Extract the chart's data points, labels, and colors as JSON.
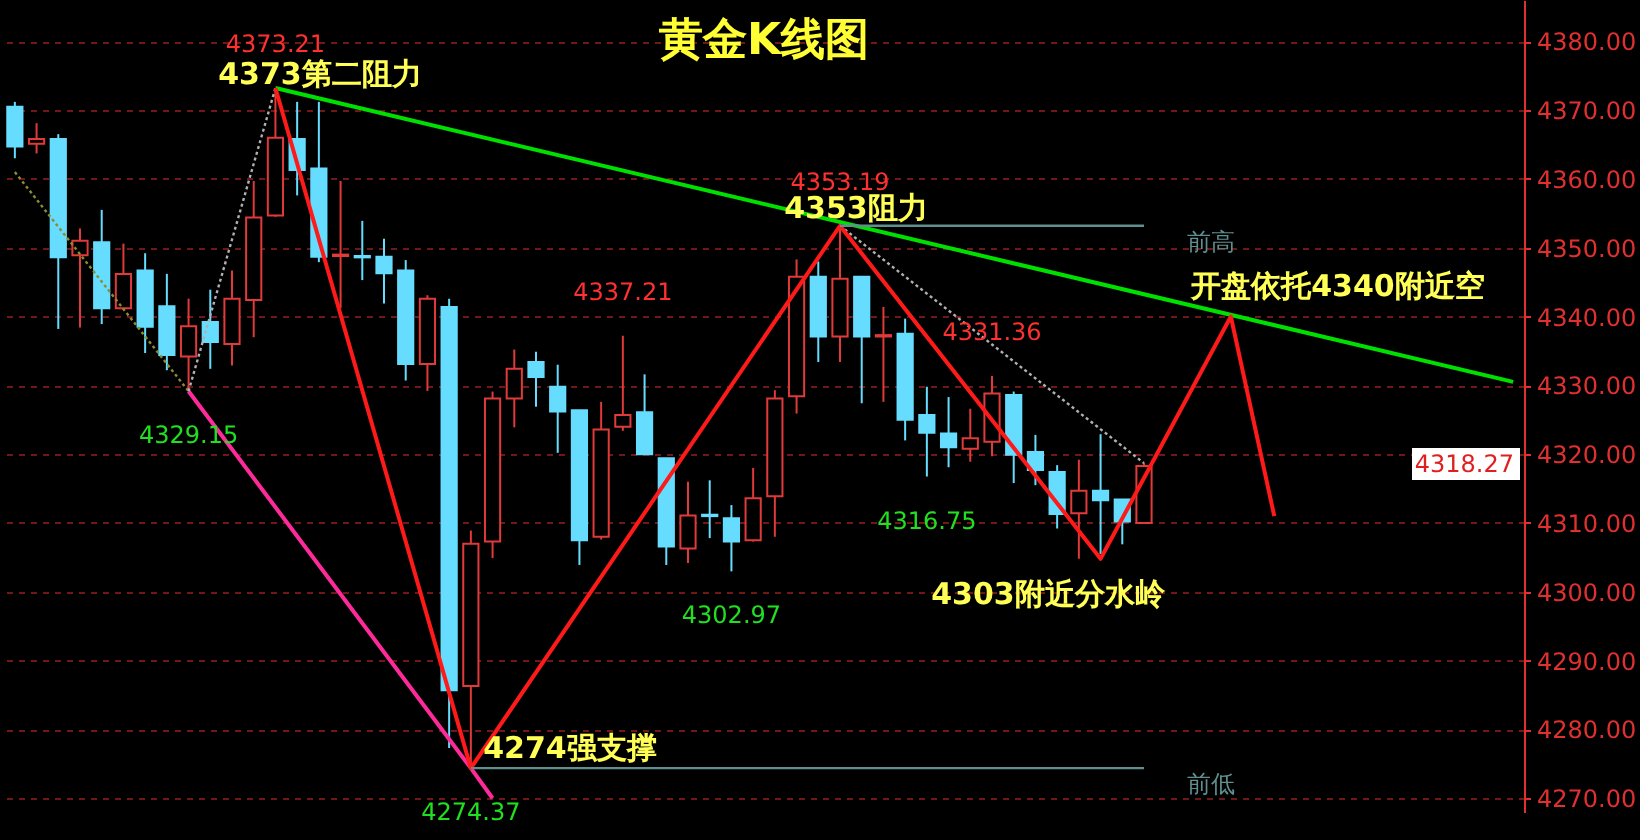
{
  "chart_data": {
    "type": "candlestick",
    "title": "黄金K线图",
    "categories": [
      null,
      null,
      null,
      null,
      null,
      null,
      null,
      null,
      null,
      null,
      null,
      null,
      null,
      null,
      null,
      null,
      null,
      null,
      null,
      null,
      null,
      null,
      null,
      null,
      null,
      null,
      null,
      null,
      null,
      null,
      null,
      null,
      null,
      null,
      null,
      null,
      null,
      null,
      null,
      null,
      null,
      null,
      null,
      null,
      null,
      null,
      null,
      null,
      null,
      null,
      null,
      null,
      null,
      null,
      null,
      null,
      null,
      null,
      null,
      null,
      null,
      null,
      null,
      null,
      null,
      null,
      null,
      null,
      null,
      null
    ],
    "ohlc": [
      [
        4370.5,
        4371.2,
        4363.0,
        4364.7
      ],
      [
        4365.1,
        4368.1,
        4363.7,
        4365.8
      ],
      [
        4365.8,
        4366.5,
        4338.2,
        4348.6
      ],
      [
        4348.9,
        4352.8,
        4338.4,
        4351.0
      ],
      [
        4350.8,
        4355.5,
        4338.9,
        4341.2
      ],
      [
        4341.2,
        4350.6,
        4341.0,
        4346.2
      ],
      [
        4346.7,
        4349.2,
        4334.7,
        4338.5
      ],
      [
        4341.5,
        4346.2,
        4332.2,
        4334.4
      ],
      [
        4334.2,
        4342.6,
        4329.15,
        4338.6
      ],
      [
        4339.2,
        4343.9,
        4332.4,
        4336.3
      ],
      [
        4336.0,
        4346.7,
        4332.9,
        4342.6
      ],
      [
        4342.4,
        4359.7,
        4337.0,
        4354.4
      ],
      [
        4354.7,
        4373.21,
        4354.5,
        4366.0
      ],
      [
        4365.8,
        4371.2,
        4357.6,
        4361.3
      ],
      [
        4361.5,
        4371.2,
        4347.9,
        4348.7
      ],
      [
        4348.8,
        4359.7,
        4341.2,
        4349.0
      ],
      [
        4348.8,
        4353.9,
        4345.3,
        4348.6
      ],
      [
        4348.7,
        4351.3,
        4341.9,
        4346.3
      ],
      [
        4346.7,
        4348.2,
        4330.7,
        4333.1
      ],
      [
        4333.1,
        4343.1,
        4329.2,
        4342.6
      ],
      [
        4341.4,
        4342.6,
        4277.3,
        4285.7
      ],
      [
        4286.3,
        4308.9,
        4274.37,
        4307.0
      ],
      [
        4307.3,
        4329.1,
        4304.9,
        4328.1
      ],
      [
        4328.1,
        4335.2,
        4323.9,
        4332.4
      ],
      [
        4333.4,
        4334.9,
        4326.9,
        4331.2
      ],
      [
        4329.8,
        4333.0,
        4320.2,
        4326.2
      ],
      [
        4326.4,
        4326.4,
        4303.9,
        4307.5
      ],
      [
        4308.0,
        4327.6,
        4307.6,
        4323.6
      ],
      [
        4324.0,
        4337.21,
        4323.4,
        4325.7
      ],
      [
        4326.1,
        4331.6,
        4320.0,
        4320.0
      ],
      [
        4319.4,
        4319.4,
        4303.9,
        4306.6
      ],
      [
        4306.3,
        4316.0,
        4304.2,
        4311.1
      ],
      [
        4311.2,
        4316.2,
        4307.8,
        4311.0
      ],
      [
        4310.7,
        4312.6,
        4302.97,
        4307.3
      ],
      [
        4307.5,
        4318.0,
        4307.3,
        4313.6
      ],
      [
        4313.9,
        4329.3,
        4308.0,
        4328.1
      ],
      [
        4328.4,
        4348.3,
        4325.9,
        4345.8
      ],
      [
        4345.8,
        4348.0,
        4333.4,
        4337.1
      ],
      [
        4337.1,
        4353.19,
        4333.4,
        4345.5
      ],
      [
        4345.8,
        4345.8,
        4327.4,
        4337.1
      ],
      [
        4337.1,
        4341.4,
        4327.6,
        4337.3
      ],
      [
        4337.5,
        4339.7,
        4322.0,
        4325.0
      ],
      [
        4325.7,
        4329.8,
        4316.75,
        4323.1
      ],
      [
        4323.0,
        4328.3,
        4318.1,
        4321.0
      ],
      [
        4320.8,
        4326.6,
        4318.9,
        4322.3
      ],
      [
        4321.8,
        4331.36,
        4319.7,
        4328.8
      ],
      [
        4328.6,
        4329.1,
        4315.8,
        4319.9
      ],
      [
        4320.3,
        4322.8,
        4315.5,
        4317.7
      ],
      [
        4317.4,
        4318.4,
        4309.2,
        4311.3
      ],
      [
        4311.4,
        4319.2,
        4304.8,
        4314.7
      ],
      [
        4314.7,
        4322.9,
        4305.5,
        4313.3
      ],
      [
        4313.4,
        4313.4,
        4306.9,
        4310.2
      ],
      [
        4310.0,
        4318.7,
        4310.0,
        4318.27
      ],
      null,
      null,
      null,
      null,
      null,
      null,
      null,
      null,
      null,
      null,
      null,
      null,
      null,
      null,
      null,
      null,
      null
    ],
    "series": [
      {
        "type": "line",
        "color": "#00e000",
        "values": [
          null,
          null,
          null,
          null,
          null,
          null,
          null,
          null,
          null,
          null,
          null,
          null,
          4373.21,
          null,
          null,
          null,
          null,
          null,
          null,
          null,
          null,
          null,
          null,
          null,
          null,
          null,
          null,
          null,
          null,
          null,
          null,
          null,
          null,
          null,
          null,
          null,
          null,
          null,
          null,
          null,
          null,
          null,
          null,
          null,
          null,
          null,
          null,
          null,
          null,
          null,
          null,
          null,
          null,
          null,
          null,
          null,
          null,
          null,
          null,
          null,
          null,
          null,
          null,
          null,
          null,
          null,
          null,
          null,
          null,
          4330.5
        ]
      },
      {
        "type": "line",
        "color": "#ff2a9a",
        "values": [
          null,
          null,
          null,
          null,
          null,
          null,
          null,
          null,
          4329.15,
          null,
          null,
          null,
          null,
          null,
          null,
          null,
          null,
          null,
          null,
          null,
          null,
          4274.37,
          4270.0,
          null,
          null,
          null,
          null,
          null,
          null,
          null,
          null,
          null,
          null,
          null,
          null,
          null,
          null,
          null,
          null,
          null,
          null,
          null,
          null,
          null,
          null,
          null,
          null,
          null,
          null,
          null,
          null,
          null,
          null,
          null,
          null,
          null,
          null,
          null,
          null,
          null,
          null,
          null,
          null,
          null,
          null,
          null,
          null,
          null,
          null,
          null
        ]
      },
      {
        "type": "line",
        "color": "#8c8c30",
        "line_style": "dotted",
        "values": [
          4361.0,
          null,
          null,
          null,
          null,
          null,
          null,
          null,
          4329.15,
          null,
          null,
          null,
          null,
          null,
          null,
          null,
          null,
          null,
          null,
          null,
          null,
          null,
          null,
          null,
          null,
          null,
          null,
          null,
          null,
          null,
          null,
          null,
          null,
          null,
          null,
          null,
          null,
          null,
          null,
          null,
          null,
          null,
          null,
          null,
          null,
          null,
          null,
          null,
          null,
          null,
          null,
          null,
          null,
          null,
          null,
          null,
          null,
          null,
          null,
          null,
          null,
          null,
          null,
          null,
          null,
          null,
          null,
          null,
          null,
          null
        ]
      },
      {
        "type": "line",
        "color": "#b0b0b0",
        "line_style": "dotted",
        "values": [
          null,
          null,
          null,
          null,
          null,
          null,
          null,
          null,
          4329.15,
          null,
          null,
          null,
          4373.21,
          null,
          null,
          null,
          null,
          null,
          null,
          null,
          null,
          null,
          null,
          null,
          null,
          null,
          null,
          null,
          null,
          null,
          null,
          null,
          null,
          null,
          null,
          null,
          null,
          null,
          null,
          null,
          null,
          null,
          null,
          null,
          null,
          null,
          null,
          null,
          null,
          null,
          null,
          null,
          null,
          null,
          null,
          null,
          null,
          null,
          null,
          null,
          null,
          null,
          null,
          null,
          null,
          null,
          null,
          null,
          null,
          null
        ]
      },
      {
        "type": "line",
        "color": "#b0b0b0",
        "line_style": "dotted",
        "values": [
          null,
          null,
          null,
          null,
          null,
          null,
          null,
          null,
          null,
          null,
          null,
          null,
          null,
          null,
          null,
          null,
          null,
          null,
          null,
          null,
          null,
          null,
          null,
          null,
          null,
          null,
          null,
          null,
          null,
          null,
          null,
          null,
          null,
          null,
          null,
          null,
          null,
          null,
          4353.19,
          null,
          null,
          null,
          null,
          null,
          null,
          null,
          null,
          null,
          null,
          null,
          null,
          null,
          4318.7,
          null,
          null,
          null,
          null,
          null,
          null,
          null,
          null,
          null,
          null,
          null,
          null,
          null,
          null,
          null,
          null,
          null
        ]
      },
      {
        "type": "line",
        "color": "#ff1a1a",
        "values": [
          null,
          null,
          null,
          null,
          null,
          null,
          null,
          null,
          null,
          null,
          null,
          null,
          4373.21,
          null,
          null,
          null,
          null,
          null,
          null,
          null,
          null,
          4274.37,
          null,
          null,
          null,
          null,
          null,
          null,
          null,
          null,
          null,
          null,
          null,
          null,
          null,
          null,
          null,
          null,
          4353.19,
          null,
          null,
          null,
          null,
          null,
          null,
          null,
          null,
          null,
          null,
          null,
          4304.8,
          null,
          null,
          null,
          null,
          null,
          4340.0,
          null,
          4311.0,
          null,
          null,
          null,
          null,
          null,
          null,
          null,
          null,
          null,
          null,
          null
        ]
      }
    ],
    "ref_lines": [
      {
        "axis": "y",
        "value": 4353.19,
        "label": "前高",
        "color": "#5f8f8f"
      },
      {
        "axis": "y",
        "value": 4274.37,
        "label": "前低",
        "color": "#5f8f8f"
      }
    ],
    "annotations": [
      "4373第二阻力",
      "4353阻力",
      "4274强支撑",
      "4303附近分水岭",
      "开盘依托4340附近空",
      {
        "text": "4373.21",
        "y": 4373.21
      },
      {
        "text": "4353.19",
        "y": 4353.19
      },
      {
        "text": "4337.21",
        "y": 4337.21
      },
      {
        "text": "4331.36",
        "y": 4331.36
      },
      {
        "text": "4329.15",
        "y": 4329.15
      },
      {
        "text": "4274.37",
        "y": 4274.37
      },
      {
        "text": "4302.97",
        "y": 4302.97
      },
      {
        "text": "4316.75",
        "y": 4316.75
      },
      "4318.27"
    ],
    "ylim": [
      4268,
      4386
    ],
    "yticks": [
      {
        "value": 4270,
        "label": "4270.00"
      },
      {
        "value": 4280,
        "label": "4280.00"
      },
      {
        "value": 4290,
        "label": "4290.00"
      },
      {
        "value": 4300,
        "label": "4300.00"
      },
      {
        "value": 4310,
        "label": "4310.00"
      },
      {
        "value": 4320,
        "label": "4320.00"
      },
      {
        "value": 4330,
        "label": "4330.00"
      },
      {
        "value": 4340,
        "label": "4340.00"
      },
      {
        "value": 4350,
        "label": "4350.00"
      },
      {
        "value": 4360,
        "label": "4360.00"
      },
      {
        "value": 4370,
        "label": "4370.00"
      },
      {
        "value": 4380,
        "label": "4380.00"
      }
    ],
    "grid": "y",
    "tick_labels": "y"
  }
}
